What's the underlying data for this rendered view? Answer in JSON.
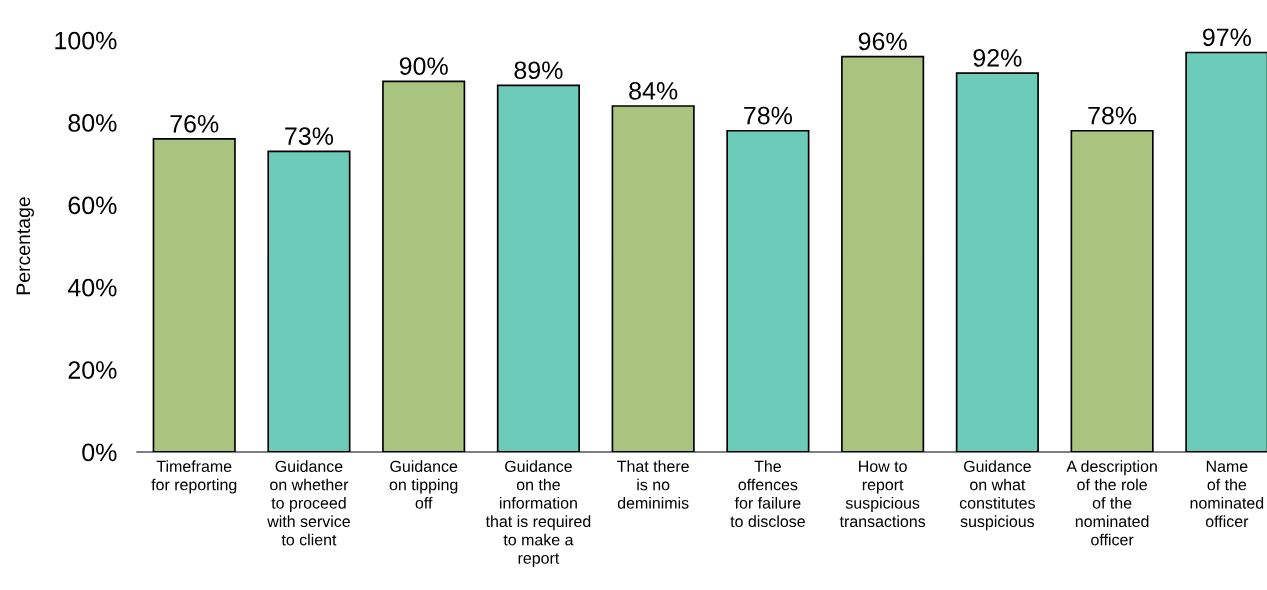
{
  "chart_data": {
    "type": "bar",
    "ylabel": "Percentage",
    "categories": [
      "Timeframe\nfor reporting",
      "Guidance\non whether\nto proceed\nwith service\nto client",
      "Guidance\non tipping\noff",
      "Guidance\non the\ninformation\nthat is required\nto make a\nreport",
      "That there\nis no\ndeminimis",
      "The\noffences\nfor failure\nto disclose",
      "How to\nreport\nsuspicious\ntransactions",
      "Guidance\non what\nconstitutes\nsuspicious",
      "A description\nof the role\nof the\nnominated\nofficer",
      "Name\nof the\nnominated\nofficer"
    ],
    "values": [
      76,
      73,
      90,
      89,
      84,
      78,
      96,
      92,
      78,
      97
    ],
    "value_labels": [
      "76%",
      "73%",
      "90%",
      "89%",
      "84%",
      "78%",
      "96%",
      "92%",
      "78%",
      "97%"
    ],
    "colors": [
      "#a9c47f",
      "#6dcbb9",
      "#a9c47f",
      "#6dcbb9",
      "#a9c47f",
      "#6dcbb9",
      "#a9c47f",
      "#6dcbb9",
      "#a9c47f",
      "#6dcbb9"
    ],
    "ylim": [
      0,
      100
    ],
    "yticks": [
      {
        "value": 0,
        "label": "0%"
      },
      {
        "value": 20,
        "label": "20%"
      },
      {
        "value": 40,
        "label": "40%"
      },
      {
        "value": 60,
        "label": "60%"
      },
      {
        "value": 80,
        "label": "80%"
      },
      {
        "value": 100,
        "label": "100%"
      }
    ],
    "grid": false,
    "legend": false
  }
}
